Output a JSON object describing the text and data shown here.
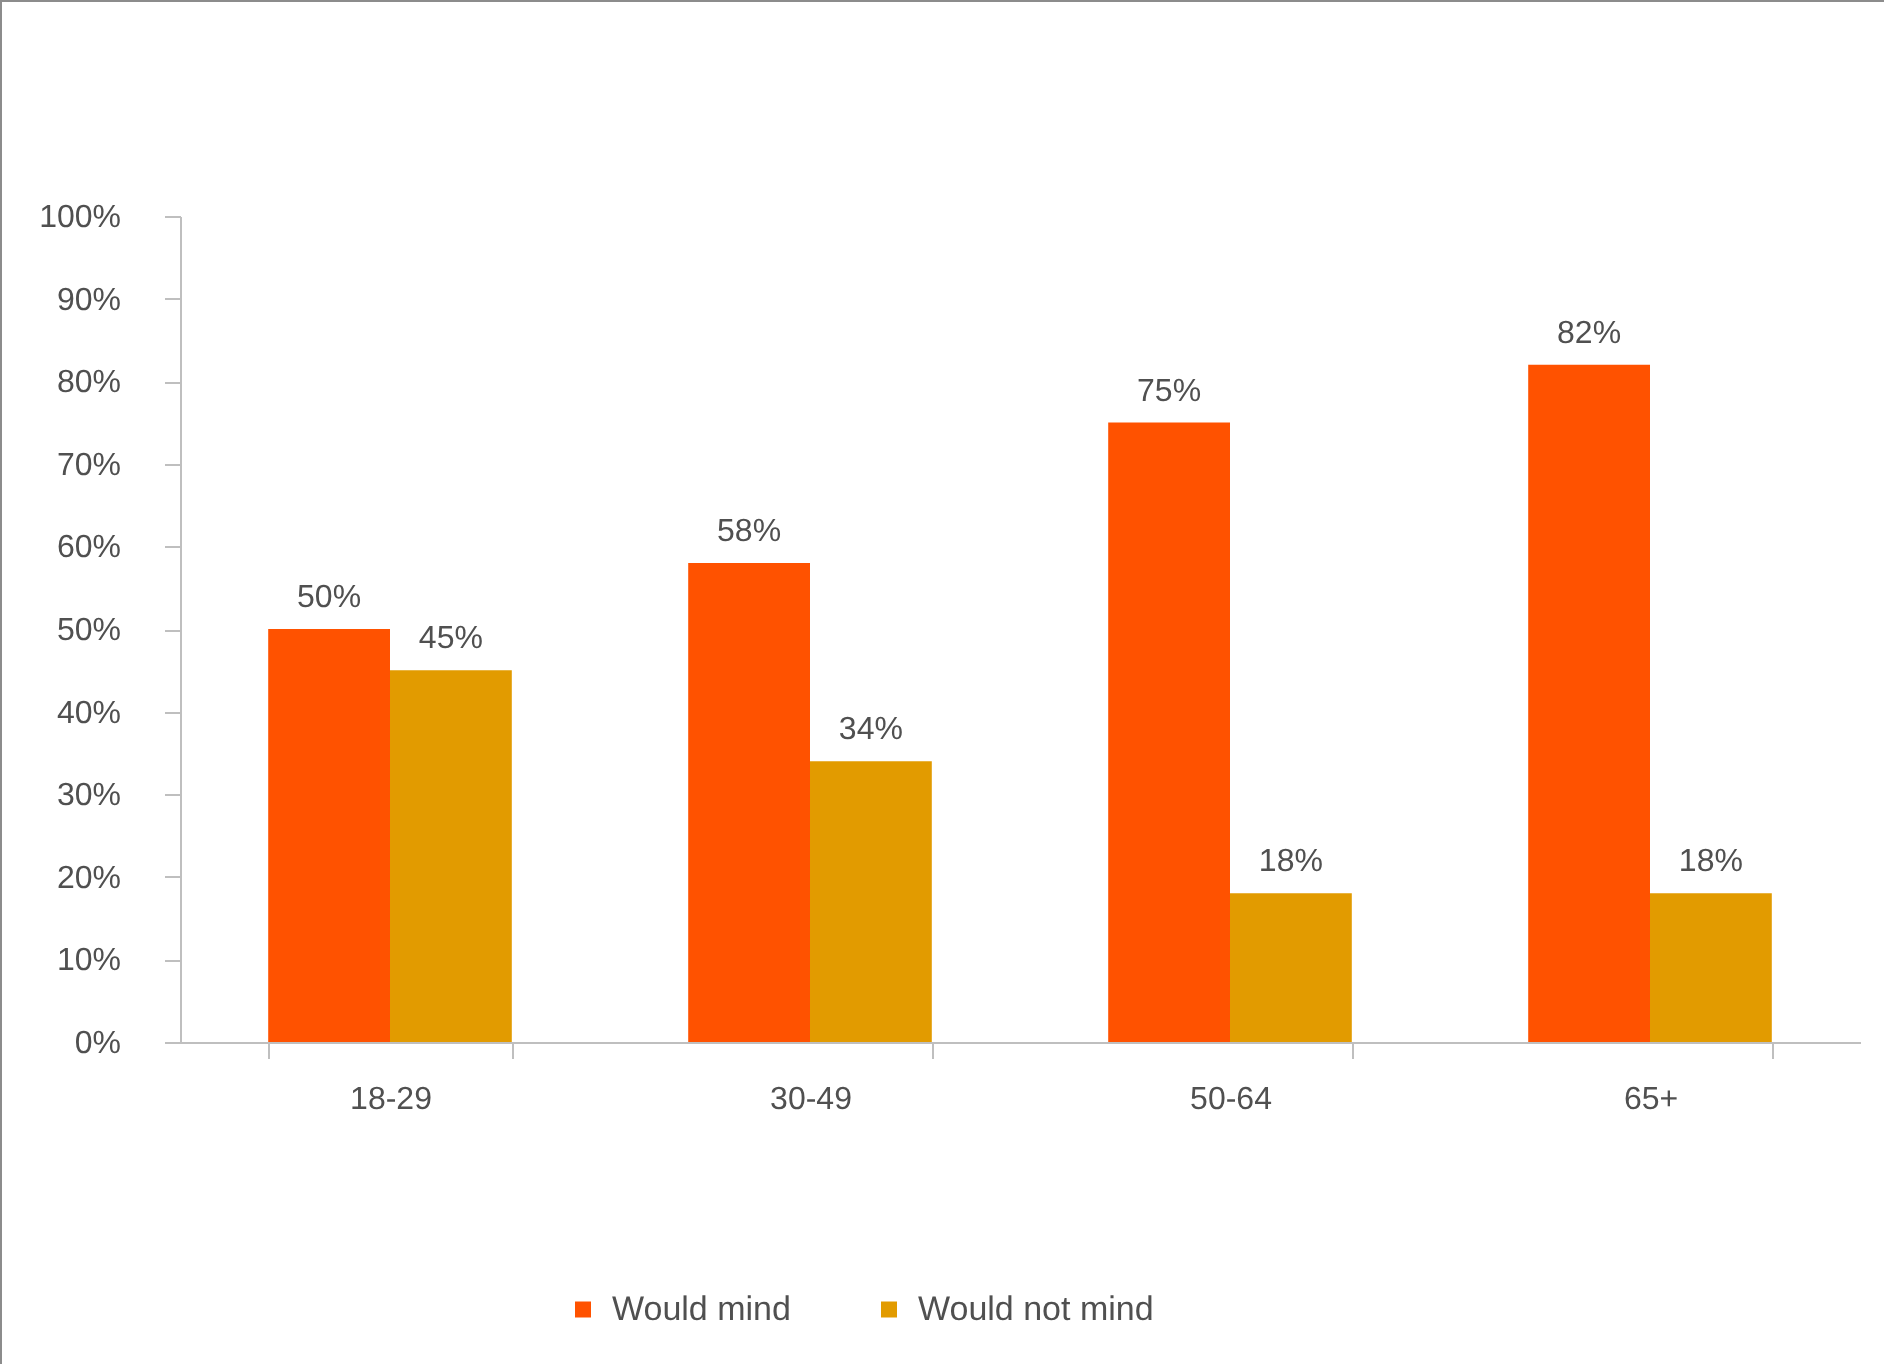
{
  "chart_data": {
    "type": "bar",
    "categories": [
      "18-29",
      "30-49",
      "50-64",
      "65+"
    ],
    "series": [
      {
        "name": "Would mind",
        "color": "#ff5200",
        "values": [
          50,
          58,
          75,
          82
        ],
        "value_labels": [
          "50%",
          "58%",
          "75%",
          "82%"
        ]
      },
      {
        "name": "Would not mind",
        "color": "#e29b00",
        "values": [
          45,
          34,
          18,
          18
        ],
        "value_labels": [
          "45%",
          "34%",
          "18%",
          "18%"
        ]
      }
    ],
    "ylim": [
      0,
      100
    ],
    "yticks": [
      {
        "value": 0,
        "label": "0%"
      },
      {
        "value": 10,
        "label": "10%"
      },
      {
        "value": 20,
        "label": "20%"
      },
      {
        "value": 30,
        "label": "30%"
      },
      {
        "value": 40,
        "label": "40%"
      },
      {
        "value": 50,
        "label": "50%"
      },
      {
        "value": 60,
        "label": "60%"
      },
      {
        "value": 70,
        "label": "70%"
      },
      {
        "value": 80,
        "label": "80%"
      },
      {
        "value": 90,
        "label": "90%"
      },
      {
        "value": 100,
        "label": "100%"
      }
    ],
    "legend": "bottom"
  }
}
